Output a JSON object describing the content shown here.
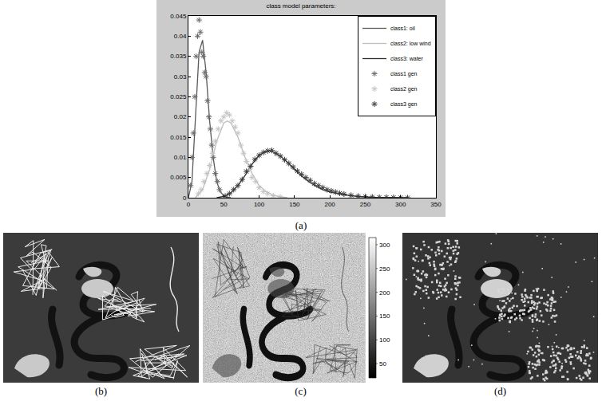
{
  "chart_data": {
    "type": "line",
    "title": "class model parameters:",
    "xlim": [
      0,
      350
    ],
    "xticks": [
      0,
      50,
      100,
      150,
      200,
      250,
      300,
      350
    ],
    "ylim": [
      0,
      0.045
    ],
    "yticks": [
      0,
      0.005,
      0.01,
      0.015,
      0.02,
      0.025,
      0.03,
      0.035,
      0.04,
      0.045
    ],
    "grid": false,
    "legend": "upper right",
    "series": [
      {
        "name": "class1: oil",
        "type": "line",
        "color": "#5a5a5a",
        "x": [
          0,
          5,
          10,
          15,
          20,
          25,
          30,
          35,
          40,
          45,
          50,
          55,
          60
        ],
        "values": [
          0,
          0.004,
          0.02,
          0.036,
          0.039,
          0.031,
          0.019,
          0.01,
          0.004,
          0.0015,
          0.0005,
          0.0001,
          0
        ]
      },
      {
        "name": "class2: low wind",
        "type": "line",
        "color": "#bdbdbd",
        "x": [
          10,
          20,
          30,
          40,
          50,
          55,
          60,
          70,
          80,
          90,
          100,
          110,
          120,
          130,
          140
        ],
        "values": [
          0,
          0.002,
          0.007,
          0.014,
          0.0185,
          0.019,
          0.0185,
          0.015,
          0.01,
          0.006,
          0.003,
          0.0015,
          0.0006,
          0.0002,
          0
        ]
      },
      {
        "name": "class3: water",
        "type": "line",
        "color": "#2e2e2e",
        "x": [
          40,
          50,
          60,
          70,
          80,
          90,
          100,
          110,
          115,
          120,
          130,
          140,
          150,
          160,
          170,
          180,
          190,
          200,
          220,
          240,
          260,
          280,
          300,
          310
        ],
        "values": [
          0,
          0.0003,
          0.0012,
          0.003,
          0.0055,
          0.0083,
          0.0105,
          0.0115,
          0.0116,
          0.0113,
          0.0103,
          0.0088,
          0.007,
          0.0054,
          0.004,
          0.0029,
          0.002,
          0.0014,
          0.0007,
          0.0003,
          0.0001,
          5e-05,
          0,
          0
        ]
      },
      {
        "name": "class1 gen",
        "type": "scatter",
        "marker": "star",
        "color": "#6a6a6a",
        "x": [
          3,
          5,
          7,
          9,
          11,
          13,
          15,
          17,
          19,
          21,
          23,
          25,
          27,
          29,
          31,
          33,
          35,
          38,
          41,
          44
        ],
        "values": [
          0.003,
          0.01,
          0.016,
          0.025,
          0.035,
          0.04,
          0.044,
          0.041,
          0.036,
          0.035,
          0.031,
          0.03,
          0.024,
          0.02,
          0.017,
          0.013,
          0.01,
          0.006,
          0.004,
          0.002
        ]
      },
      {
        "name": "class2 gen",
        "type": "scatter",
        "marker": "star",
        "color": "#c4c4c4",
        "x": [
          14,
          18,
          22,
          26,
          30,
          34,
          38,
          42,
          46,
          50,
          54,
          58,
          62,
          66,
          70,
          74,
          78,
          82,
          86,
          90,
          95,
          100,
          106,
          112,
          120,
          130
        ],
        "values": [
          0.001,
          0.002,
          0.004,
          0.006,
          0.008,
          0.011,
          0.014,
          0.017,
          0.019,
          0.02,
          0.021,
          0.0205,
          0.019,
          0.0175,
          0.016,
          0.013,
          0.011,
          0.009,
          0.007,
          0.005,
          0.004,
          0.0025,
          0.0015,
          0.001,
          0.0005,
          0.0002
        ]
      },
      {
        "name": "class3 gen",
        "type": "scatter",
        "marker": "star",
        "color": "#3a3a3a",
        "x": [
          52,
          58,
          64,
          70,
          76,
          82,
          88,
          94,
          100,
          106,
          112,
          118,
          124,
          130,
          136,
          142,
          148,
          154,
          160,
          166,
          172,
          178,
          184,
          190,
          196,
          202,
          208,
          214,
          220,
          230,
          240,
          250,
          260,
          270,
          280,
          290,
          300,
          310
        ],
        "values": [
          0.0004,
          0.001,
          0.002,
          0.003,
          0.0045,
          0.0065,
          0.0078,
          0.0095,
          0.0105,
          0.0112,
          0.0116,
          0.0117,
          0.011,
          0.0103,
          0.0094,
          0.0085,
          0.0076,
          0.0066,
          0.0058,
          0.005,
          0.0043,
          0.0035,
          0.003,
          0.0025,
          0.002,
          0.0017,
          0.0014,
          0.0011,
          0.0009,
          0.0006,
          0.0004,
          0.0003,
          0.0002,
          0.0001,
          0.0001,
          5e-05,
          3e-05,
          0
        ]
      }
    ]
  },
  "panels": [
    {
      "label": "(a)"
    },
    {
      "label": "(b)"
    },
    {
      "label": "(c)",
      "colorbar": {
        "range": [
          20,
          315
        ],
        "ticks": [
          50,
          100,
          150,
          200,
          250,
          300
        ]
      }
    },
    {
      "label": "(d)"
    }
  ]
}
